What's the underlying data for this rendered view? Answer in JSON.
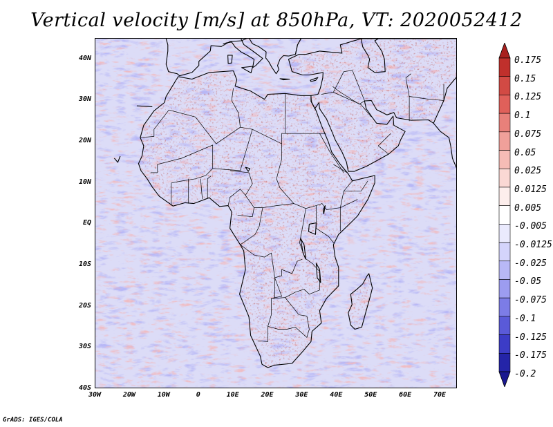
{
  "title": "Vertical velocity [m/s] at 850hPa, VT: 2020052412",
  "credit": "GrADS: IGES/COLA",
  "map": {
    "lon_range": [
      -30,
      75
    ],
    "lat_range": [
      -40,
      45
    ],
    "lat_labels": [
      "40N",
      "30N",
      "20N",
      "10N",
      "EQ",
      "10S",
      "20S",
      "30S",
      "40S"
    ],
    "lat_values": [
      40,
      30,
      20,
      10,
      0,
      -10,
      -20,
      -30,
      -40
    ],
    "lon_labels": [
      "30W",
      "20W",
      "10W",
      "0",
      "10E",
      "20E",
      "30E",
      "40E",
      "50E",
      "60E",
      "70E"
    ],
    "lon_values": [
      -30,
      -20,
      -10,
      0,
      10,
      20,
      30,
      40,
      50,
      60,
      70
    ]
  },
  "colorbar": {
    "labels": [
      "0.175",
      "0.15",
      "0.125",
      "0.1",
      "0.075",
      "0.05",
      "0.025",
      "0.0125",
      "0.005",
      "-0.005",
      "-0.0125",
      "-0.025",
      "-0.05",
      "-0.075",
      "-0.1",
      "-0.125",
      "-0.175",
      "-0.2"
    ],
    "colors": [
      "#a8201e",
      "#c0302c",
      "#d24a44",
      "#e0605a",
      "#e8807a",
      "#f0a09a",
      "#f6bcb6",
      "#fad8d4",
      "#fdeeec",
      "#ffffff",
      "#eaeafd",
      "#d4d4fb",
      "#b8b8f6",
      "#9c9cf0",
      "#7c7ce6",
      "#5a5ad8",
      "#3c3cc6",
      "#2424a8",
      "#1a1890"
    ]
  }
}
